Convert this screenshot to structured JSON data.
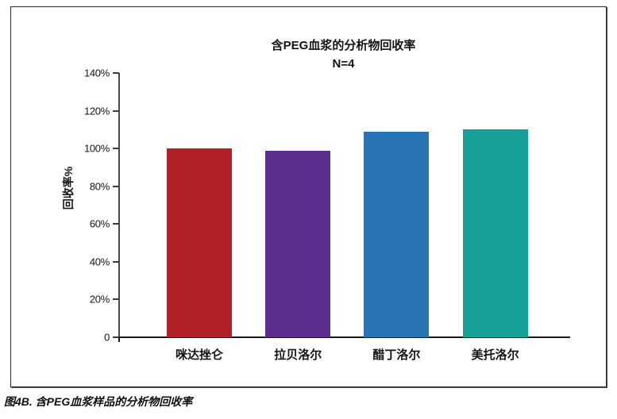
{
  "chart_data": {
    "type": "bar",
    "title": "含PEG血浆的分析物回收率",
    "subtitle": "N=4",
    "categories": [
      "咪达挫仑",
      "拉贝洛尔",
      "醋丁洛尔",
      "美托洛尔"
    ],
    "values": [
      100,
      99,
      109,
      110
    ],
    "bar_colors": [
      "#b22028",
      "#5b2d8e",
      "#2773b3",
      "#18a199"
    ],
    "xlabel": "",
    "ylabel": "回收率%",
    "ylim": [
      0,
      140
    ],
    "ytick_step": 20,
    "ytick_labels": [
      "140%",
      "120%",
      "100%",
      "80%",
      "60%",
      "40%",
      "20%",
      "0"
    ],
    "grid": false,
    "legend": false,
    "axis_color": "#1b1b1b"
  },
  "caption": {
    "text": "图4B. 含PEG血浆样品的分析物回收率"
  }
}
